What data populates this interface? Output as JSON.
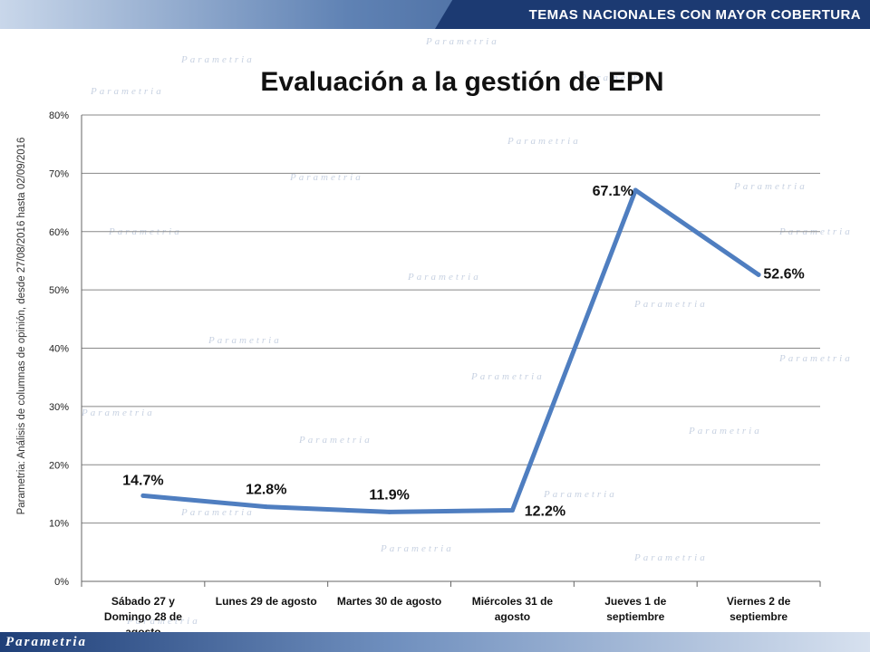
{
  "header": {
    "title": "TEMAS NACIONALES CON MAYOR COBERTURA"
  },
  "brand": {
    "logo": "Parametria",
    "watermark": "Parametria"
  },
  "side_label": "Parametria: Análisis de columnas de opinión, desde 27/08/2016 hasta  02/09/2016",
  "colors": {
    "line": "#4f7ec0",
    "header": "#1c3a72",
    "grid": "#888888"
  },
  "chart_data": {
    "type": "line",
    "title": "Evaluación a la gestión de EPN",
    "categories": [
      [
        "Sábado 27 y",
        "Domingo 28 de",
        "agosto"
      ],
      [
        "Lunes 29 de agosto"
      ],
      [
        "Martes 30 de agosto"
      ],
      [
        "Miércoles 31 de",
        "agosto"
      ],
      [
        "Jueves 1 de",
        "septiembre"
      ],
      [
        "Viernes 2 de",
        "septiembre"
      ]
    ],
    "series": [
      {
        "values": [
          14.7,
          12.8,
          11.9,
          12.2,
          67.1,
          52.6
        ]
      }
    ],
    "data_labels": [
      "14.7%",
      "12.8%",
      "11.9%",
      "12.2%",
      "67.1%",
      "52.6%"
    ],
    "yticks": [
      "0%",
      "10%",
      "20%",
      "30%",
      "40%",
      "50%",
      "60%",
      "70%",
      "80%"
    ],
    "ylim": [
      0,
      80
    ],
    "grid": true
  }
}
